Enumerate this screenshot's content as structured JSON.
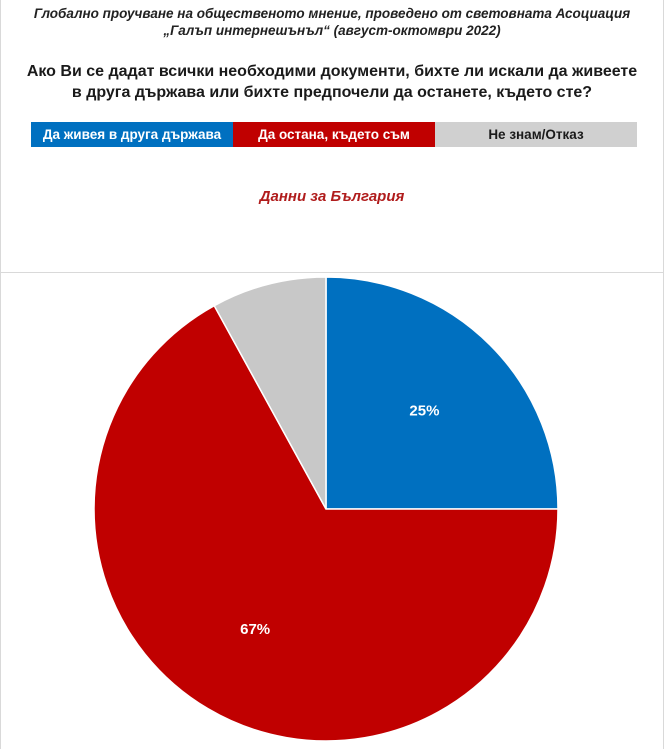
{
  "header": {
    "survey_line1": "Глобално проучване на общественото мнение, проведено от световната Асоциация",
    "survey_line2": "„Галъп интернешънъл“ (август-октомври 2022)",
    "question_line1": "Ако Ви се дадат всички необходими документи, бихте ли искали да живеете",
    "question_line2": "в друга държава или бихте предпочели да останете, където сте?"
  },
  "legend": {
    "items": [
      {
        "label": "Да живея в друга държава",
        "color": "#0070c0",
        "text_color": "#ffffff"
      },
      {
        "label": "Да остана, където съм",
        "color": "#c00000",
        "text_color": "#ffffff"
      },
      {
        "label": "Не знам/Отказ",
        "color": "#d0d0d0",
        "text_color": "#1a1a1a"
      }
    ]
  },
  "subtitle": "Данни за България",
  "chart_data": {
    "type": "pie",
    "start_angle_deg": 0,
    "direction": "clockwise",
    "legend_position": "top",
    "slices": [
      {
        "name": "Да живея в друга държава",
        "value": 25,
        "label": "25%",
        "color": "#0070c0"
      },
      {
        "name": "Да остана, където съм",
        "value": 67,
        "label": "67%",
        "color": "#c00000"
      },
      {
        "name": "Не знам/Отказ",
        "value": 8,
        "label": "",
        "color": "#c8c8c8"
      }
    ]
  }
}
